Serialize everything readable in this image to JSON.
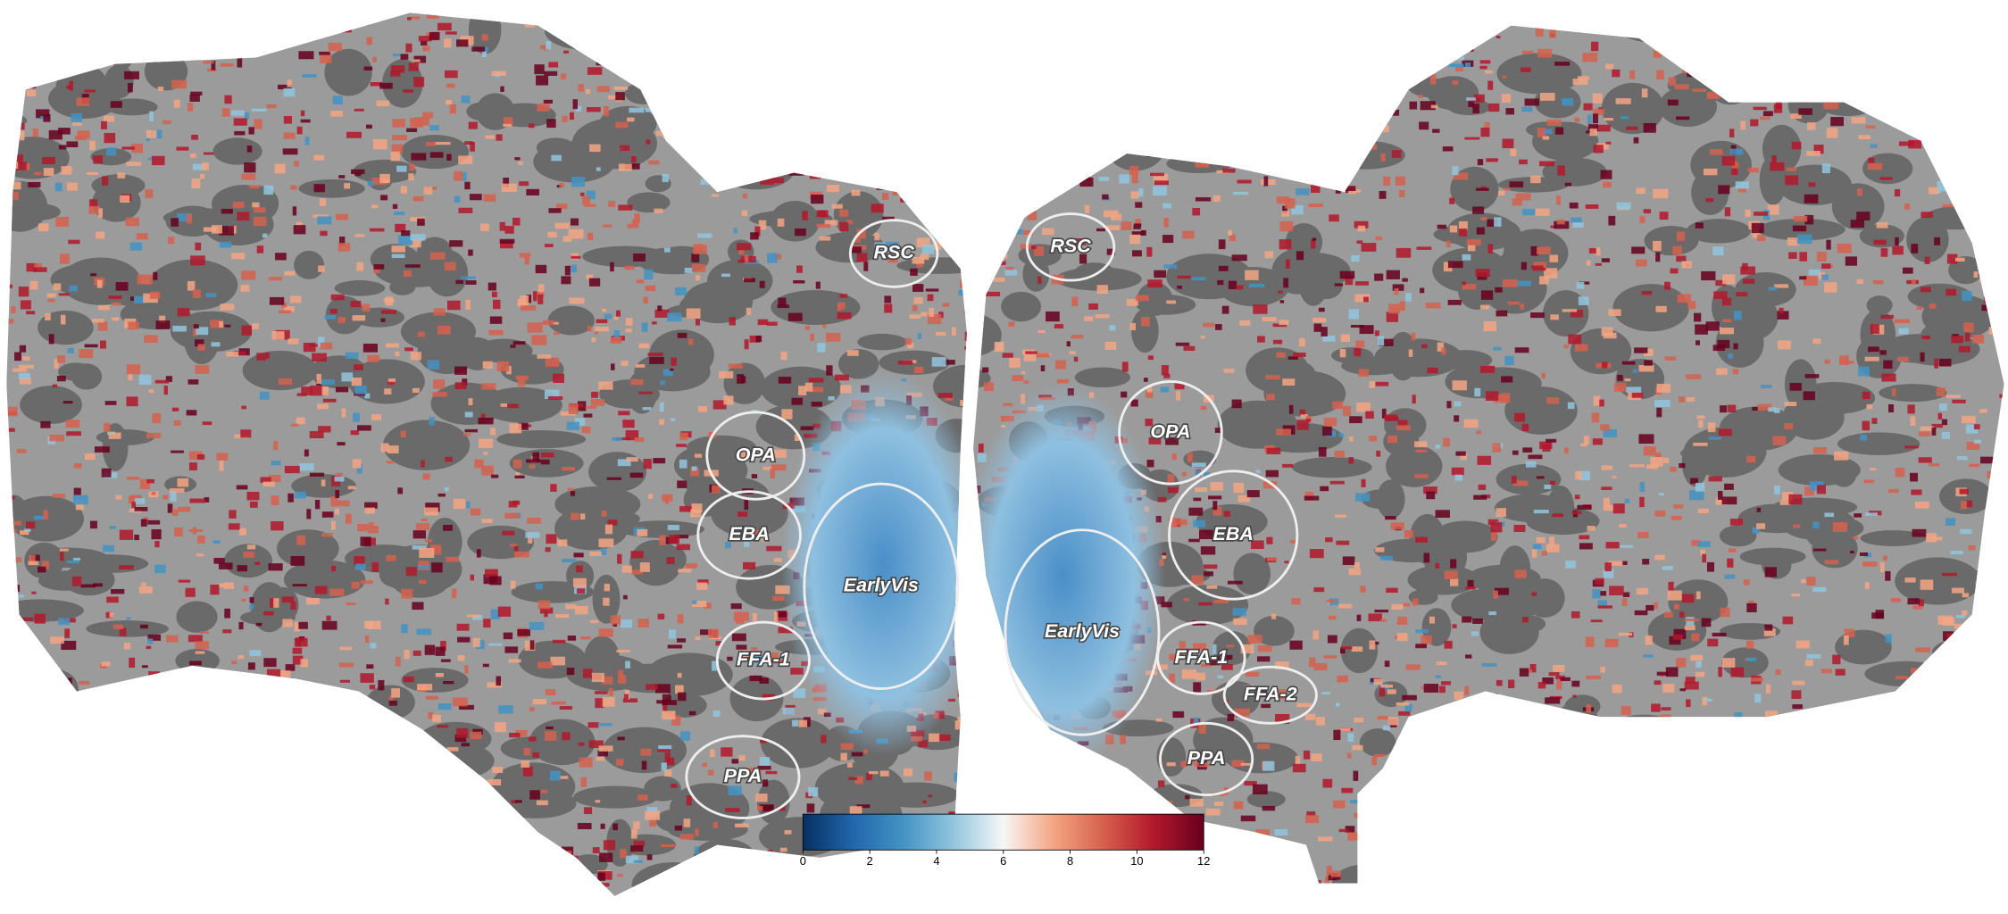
{
  "left_hemisphere": {
    "rois": [
      "RSC",
      "OPA",
      "EBA",
      "EarlyVis",
      "FFA-1",
      "PPA"
    ]
  },
  "right_hemisphere": {
    "rois": [
      "RSC",
      "OPA",
      "EBA",
      "EarlyVis",
      "FFA-1",
      "FFA-2",
      "PPA"
    ]
  },
  "colorbar": {
    "range": [
      0,
      12
    ],
    "ticks": [
      0,
      2,
      4,
      6,
      8,
      10,
      12
    ],
    "colormap": [
      "#053061",
      "#2166ac",
      "#4393c3",
      "#92c5de",
      "#f7f7f7",
      "#f4a582",
      "#d6604d",
      "#b2182b",
      "#67001f"
    ]
  }
}
